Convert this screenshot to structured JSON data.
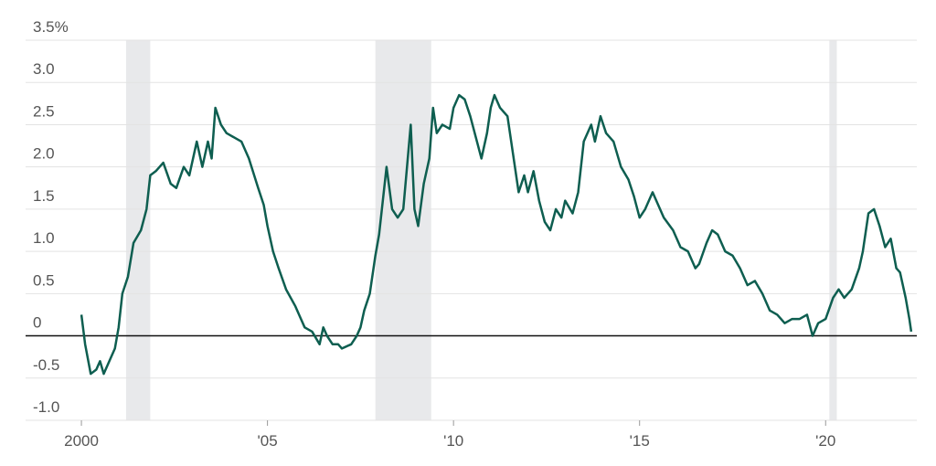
{
  "chart_data": {
    "type": "line",
    "x": [
      2000.0,
      2000.1,
      2000.25,
      2000.4,
      2000.5,
      2000.6,
      2000.75,
      2000.9,
      2001.0,
      2001.1,
      2001.25,
      2001.4,
      2001.6,
      2001.75,
      2001.85,
      2002.0,
      2002.2,
      2002.4,
      2002.55,
      2002.75,
      2002.9,
      2003.0,
      2003.1,
      2003.25,
      2003.4,
      2003.5,
      2003.6,
      2003.75,
      2003.9,
      2004.1,
      2004.3,
      2004.5,
      2004.75,
      2004.9,
      2005.0,
      2005.15,
      2005.3,
      2005.5,
      2005.75,
      2005.9,
      2006.0,
      2006.2,
      2006.4,
      2006.5,
      2006.6,
      2006.75,
      2006.9,
      2007.0,
      2007.25,
      2007.4,
      2007.5,
      2007.6,
      2007.75,
      2007.9,
      2008.0,
      2008.1,
      2008.2,
      2008.35,
      2008.5,
      2008.65,
      2008.75,
      2008.85,
      2008.95,
      2009.05,
      2009.2,
      2009.35,
      2009.45,
      2009.55,
      2009.7,
      2009.9,
      2010.0,
      2010.15,
      2010.3,
      2010.45,
      2010.6,
      2010.75,
      2010.9,
      2011.0,
      2011.1,
      2011.25,
      2011.45,
      2011.6,
      2011.75,
      2011.9,
      2012.0,
      2012.15,
      2012.3,
      2012.45,
      2012.6,
      2012.75,
      2012.9,
      2013.0,
      2013.2,
      2013.35,
      2013.5,
      2013.7,
      2013.8,
      2013.95,
      2014.1,
      2014.3,
      2014.5,
      2014.7,
      2014.85,
      2015.0,
      2015.15,
      2015.35,
      2015.5,
      2015.65,
      2015.9,
      2016.1,
      2016.3,
      2016.5,
      2016.6,
      2016.8,
      2016.95,
      2017.1,
      2017.3,
      2017.5,
      2017.7,
      2017.9,
      2018.1,
      2018.3,
      2018.5,
      2018.7,
      2018.9,
      2019.1,
      2019.3,
      2019.5,
      2019.65,
      2019.8,
      2020.0,
      2020.2,
      2020.35,
      2020.5,
      2020.7,
      2020.9,
      2021.0,
      2021.15,
      2021.3,
      2021.45,
      2021.6,
      2021.75,
      2021.9,
      2022.0,
      2022.15,
      2022.25,
      2022.3
    ],
    "values": [
      0.25,
      -0.1,
      -0.45,
      -0.4,
      -0.3,
      -0.45,
      -0.3,
      -0.15,
      0.1,
      0.5,
      0.7,
      1.1,
      1.25,
      1.5,
      1.9,
      1.95,
      2.05,
      1.8,
      1.75,
      2.0,
      1.9,
      2.1,
      2.3,
      2.0,
      2.3,
      2.1,
      2.7,
      2.5,
      2.4,
      2.35,
      2.3,
      2.1,
      1.75,
      1.55,
      1.3,
      1.0,
      0.8,
      0.55,
      0.35,
      0.2,
      0.1,
      0.05,
      -0.1,
      0.1,
      0.0,
      -0.1,
      -0.1,
      -0.15,
      -0.1,
      0.0,
      0.1,
      0.3,
      0.5,
      0.95,
      1.2,
      1.6,
      2.0,
      1.5,
      1.4,
      1.5,
      2.0,
      2.5,
      1.5,
      1.3,
      1.8,
      2.1,
      2.7,
      2.4,
      2.5,
      2.45,
      2.7,
      2.85,
      2.8,
      2.6,
      2.35,
      2.1,
      2.4,
      2.7,
      2.85,
      2.7,
      2.6,
      2.15,
      1.7,
      1.9,
      1.7,
      1.95,
      1.6,
      1.35,
      1.25,
      1.5,
      1.4,
      1.6,
      1.45,
      1.7,
      2.3,
      2.5,
      2.3,
      2.6,
      2.4,
      2.3,
      2.0,
      1.85,
      1.65,
      1.4,
      1.5,
      1.7,
      1.55,
      1.4,
      1.25,
      1.05,
      1.0,
      0.8,
      0.85,
      1.1,
      1.25,
      1.2,
      1.0,
      0.95,
      0.8,
      0.6,
      0.65,
      0.5,
      0.3,
      0.25,
      0.15,
      0.2,
      0.2,
      0.25,
      0.0,
      0.15,
      0.2,
      0.45,
      0.55,
      0.45,
      0.55,
      0.8,
      1.0,
      1.45,
      1.5,
      1.3,
      1.05,
      1.15,
      0.8,
      0.75,
      0.45,
      0.2,
      0.05
    ],
    "color": "#0e5e50",
    "shaded_ranges": [
      [
        2001.2,
        2001.85
      ],
      [
        2007.9,
        2009.4
      ],
      [
        2020.1,
        2020.3
      ]
    ],
    "xlim": [
      1998.5,
      2022.45
    ],
    "xticks": [
      2000,
      {
        "value": 2005,
        "label": "'05"
      },
      {
        "value": 2010,
        "label": "'10"
      },
      {
        "value": 2015,
        "label": "'15"
      },
      {
        "value": 2020,
        "label": "'20"
      }
    ],
    "ylim": [
      -1,
      3.5
    ],
    "yticks": [
      {
        "value": 3.5,
        "label": "3.5%"
      },
      {
        "value": 3,
        "label": "3.0"
      },
      2.5,
      {
        "value": 2,
        "label": "2.0"
      },
      1.5,
      {
        "value": 1,
        "label": "1.0"
      },
      0.5,
      0,
      -0.5,
      {
        "value": -1,
        "label": "-1.0"
      }
    ],
    "grid": true
  }
}
